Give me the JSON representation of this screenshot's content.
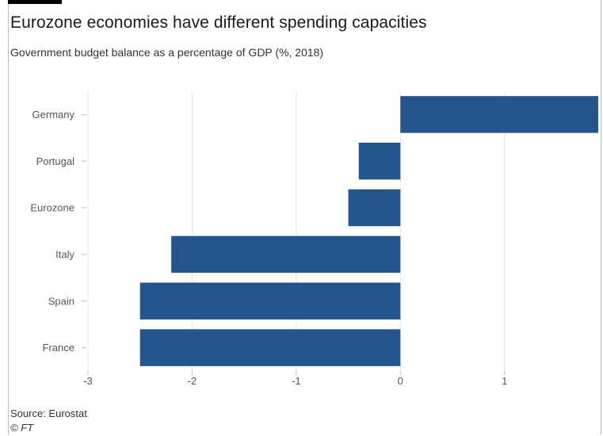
{
  "header": {
    "title": "Eurozone economies have different spending capacities",
    "subtitle": "Government budget balance as a percentage of GDP (%, 2018)"
  },
  "footer": {
    "source": "Source: Eurostat",
    "credit": "© FT"
  },
  "colors": {
    "bar": "#23558f",
    "grid": "#e4e4e4",
    "axis_text": "#555555"
  },
  "chart_data": {
    "type": "bar",
    "orientation": "horizontal",
    "title": "Eurozone economies have different spending capacities",
    "subtitle": "Government budget balance as a percentage of GDP (%, 2018)",
    "categories": [
      "Germany",
      "Portugal",
      "Eurozone",
      "Italy",
      "Spain",
      "France"
    ],
    "values": [
      1.9,
      -0.4,
      -0.5,
      -2.2,
      -2.5,
      -2.5
    ],
    "xlim": [
      -3,
      1.9
    ],
    "xticks": [
      -3,
      -2,
      -1,
      0,
      1
    ],
    "xticklabels": [
      "-3",
      "-2",
      "-1",
      "0",
      "1"
    ],
    "grid": true,
    "legend": "none"
  }
}
